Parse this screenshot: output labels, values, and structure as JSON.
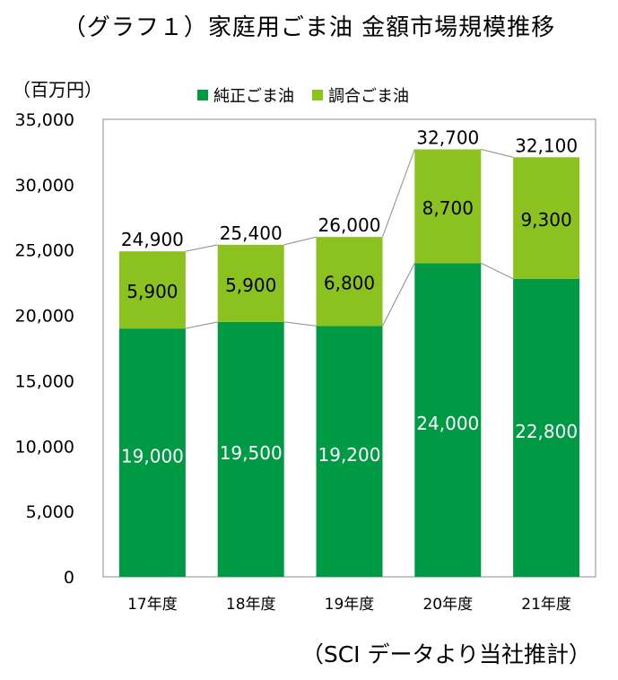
{
  "chart_data": {
    "type": "bar",
    "stacked": true,
    "title": "（グラフ１）家庭用ごま油 金額市場規模推移",
    "ylabel": "（百万円）",
    "source": "（SCI データより当社推計）",
    "categories": [
      "17年度",
      "18年度",
      "19年度",
      "20年度",
      "21年度"
    ],
    "series": [
      {
        "name": "純正ごま油",
        "color": "#009a44",
        "values": [
          19000,
          19500,
          19200,
          24000,
          22800
        ],
        "labels": [
          "19,000",
          "19,500",
          "19,200",
          "24,000",
          "22,800"
        ]
      },
      {
        "name": "調合ごま油",
        "color": "#8cc21f",
        "values": [
          5900,
          5900,
          6800,
          8700,
          9300
        ],
        "labels": [
          "5,900",
          "5,900",
          "6,800",
          "8,700",
          "9,300"
        ]
      }
    ],
    "totals": [
      24900,
      25400,
      26000,
      32700,
      32100
    ],
    "total_labels": [
      "24,900",
      "25,400",
      "26,000",
      "32,700",
      "32,100"
    ],
    "ylim": [
      0,
      35000
    ],
    "yticks": [
      0,
      5000,
      10000,
      15000,
      20000,
      25000,
      30000,
      35000
    ],
    "ytick_labels": [
      "0",
      "5,000",
      "10,000",
      "15,000",
      "20,000",
      "25,000",
      "30,000",
      "35,000"
    ],
    "legend_position": "top-center",
    "grid": false
  }
}
